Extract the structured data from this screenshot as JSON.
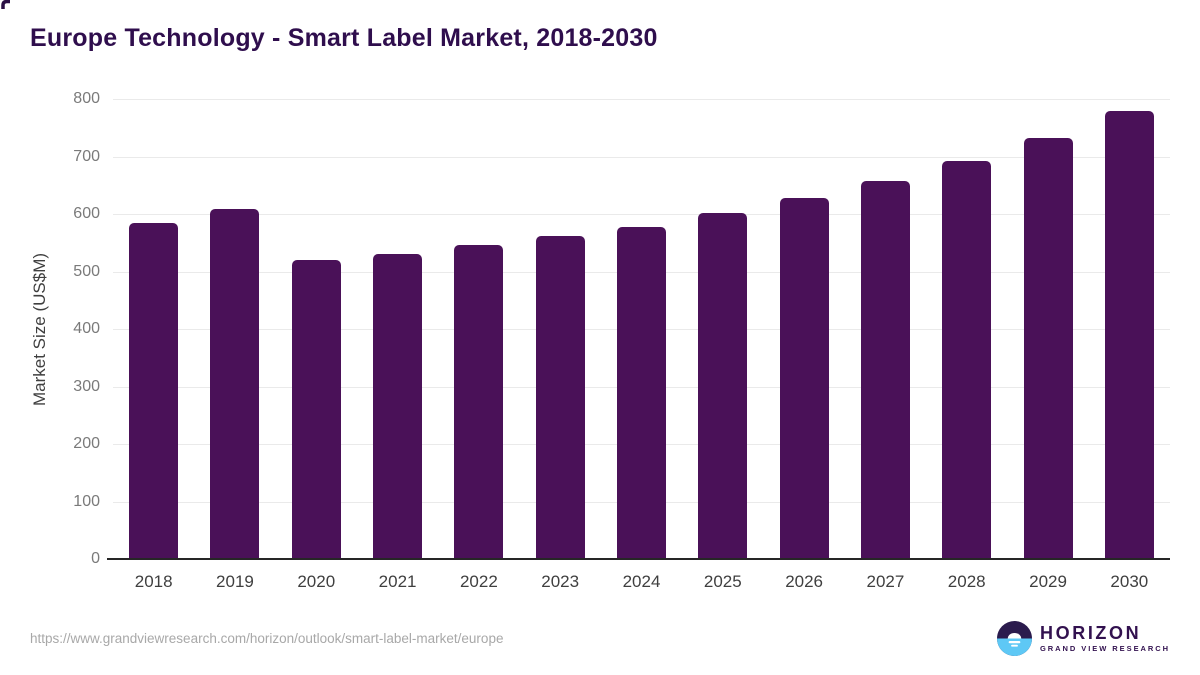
{
  "title": "Europe Technology - Smart Label Market, 2018-2030",
  "chart_data": {
    "type": "bar",
    "title": "Europe Technology - Smart Label Market, 2018-2030",
    "categories": [
      "2018",
      "2019",
      "2020",
      "2021",
      "2022",
      "2023",
      "2024",
      "2025",
      "2026",
      "2027",
      "2028",
      "2029",
      "2030"
    ],
    "values": [
      585,
      608,
      520,
      531,
      546,
      561,
      578,
      602,
      628,
      658,
      692,
      732,
      779
    ],
    "xlabel": "",
    "ylabel": "Market Size (US$M)",
    "ylim": [
      0,
      800
    ],
    "ytick_step": 100,
    "bar_color": "#4a1158",
    "grid": true,
    "legend": false
  },
  "footer": {
    "source_url": "https://www.grandviewresearch.com/horizon/outlook/smart-label-market/europe",
    "logo": {
      "name": "HORIZON",
      "subtitle": "GRAND VIEW RESEARCH"
    }
  },
  "colors": {
    "title": "#2f0e4d",
    "bar": "#4a1158",
    "gridline": "#eaeaea",
    "axis_line": "#262626",
    "y_tick_label": "#7a7a7a",
    "x_tick_label": "#3f3f3f",
    "url_text": "#a8a8a8",
    "logo_dark": "#2b1b4d",
    "logo_blue": "#5ec8f5"
  }
}
